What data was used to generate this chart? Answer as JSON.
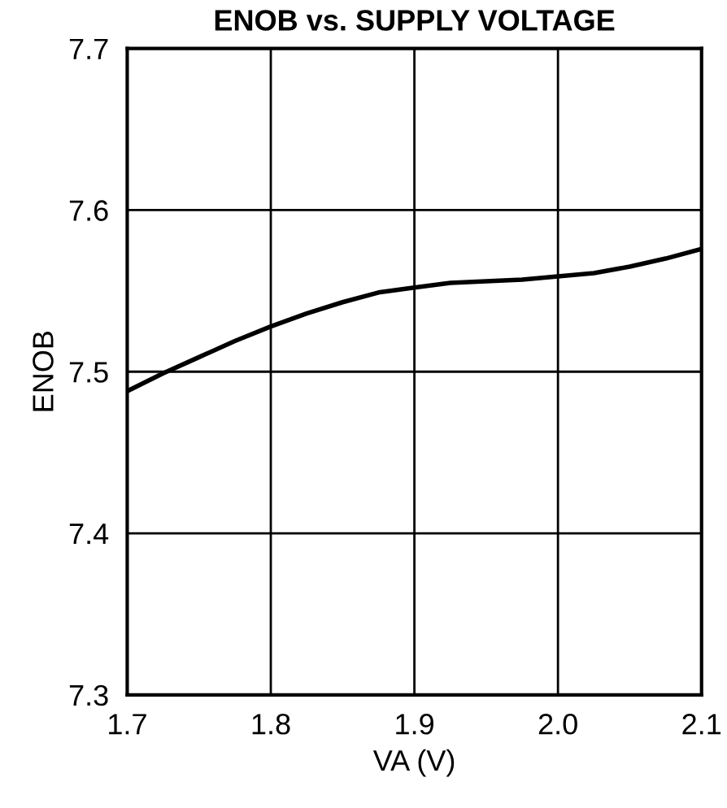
{
  "chart_data": {
    "type": "line",
    "title": "ENOB vs. SUPPLY VOLTAGE",
    "xlabel": "VA (V)",
    "ylabel": "ENOB",
    "x": [
      1.7,
      1.725,
      1.75,
      1.775,
      1.8,
      1.825,
      1.85,
      1.875,
      1.9,
      1.925,
      1.95,
      1.975,
      2.0,
      2.025,
      2.05,
      2.075,
      2.1
    ],
    "series": [
      {
        "color": "#000000",
        "values": [
          7.488,
          7.499,
          7.509,
          7.519,
          7.528,
          7.536,
          7.543,
          7.549,
          7.552,
          7.555,
          7.556,
          7.557,
          7.559,
          7.561,
          7.565,
          7.57,
          7.576
        ]
      }
    ],
    "xlim": [
      1.7,
      2.1
    ],
    "xticks": [
      1.7,
      1.8,
      1.9,
      {
        "value": 2,
        "label": "2.0"
      },
      2.1
    ],
    "ylim": [
      7.3,
      7.7
    ],
    "yticks": [
      7.3,
      7.4,
      7.5,
      7.6,
      7.7
    ],
    "grid": true,
    "marker": "none",
    "line_style": "solid"
  }
}
